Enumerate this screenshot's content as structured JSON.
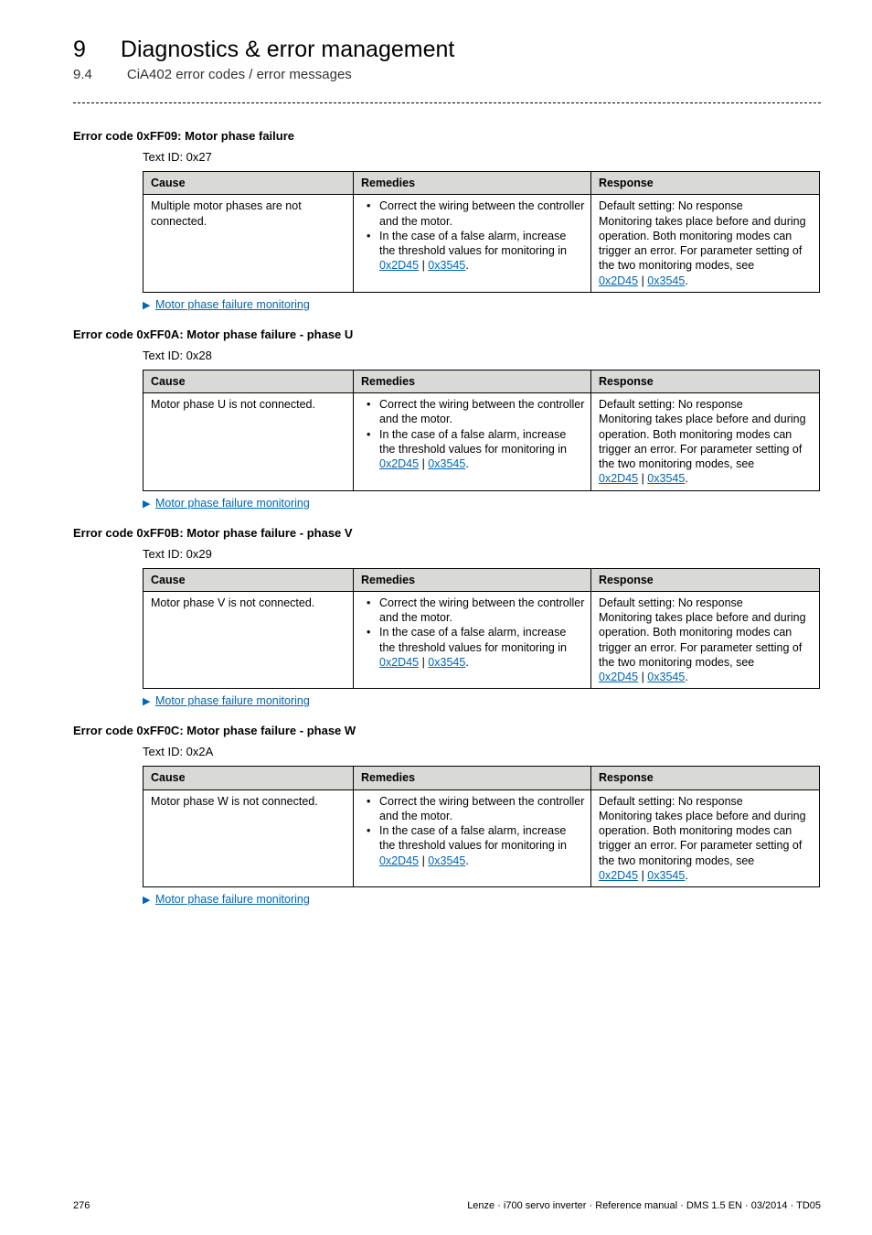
{
  "header": {
    "chapter_num": "9",
    "chapter_title": "Diagnostics & error management",
    "section_num": "9.4",
    "section_title": "CiA402 error codes / error messages"
  },
  "columns": {
    "cause": "Cause",
    "remedies": "Remedies",
    "response": "Response"
  },
  "remedy_bullets": {
    "b1": "Correct the wiring between the controller and the motor.",
    "b2a": "In the case of a false alarm, increase the threshold values for monitoring in ",
    "link1": "0x2D45",
    "sep": " | ",
    "link2": "0x3545",
    "period": "."
  },
  "response_text": {
    "l1": "Default setting: No response",
    "l2": "Monitoring takes place before and during operation. Both monitoring modes can trigger an error. For parameter setting of the two monitoring modes, see",
    "link1": "0x2D45",
    "sep": " | ",
    "link2": "0x3545",
    "period": "."
  },
  "monitoring_link": "Motor phase failure monitoring",
  "sections": [
    {
      "title": "Error code 0xFF09: Motor phase failure",
      "textid": "Text ID: 0x27",
      "cause": "Multiple motor phases are not connected."
    },
    {
      "title": "Error code 0xFF0A: Motor phase failure - phase U",
      "textid": "Text ID: 0x28",
      "cause": "Motor phase U is not connected."
    },
    {
      "title": "Error code 0xFF0B: Motor phase failure - phase V",
      "textid": "Text ID: 0x29",
      "cause": "Motor phase V is not connected."
    },
    {
      "title": "Error code 0xFF0C: Motor phase failure - phase W",
      "textid": "Text ID: 0x2A",
      "cause": "Motor phase W is not connected."
    }
  ],
  "footer": {
    "page": "276",
    "doc": "Lenze · i700 servo inverter · Reference manual · DMS 1.5 EN · 03/2014 · TD05"
  }
}
